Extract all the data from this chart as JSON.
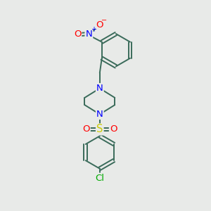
{
  "bg_color": "#e8eae8",
  "bond_color": "#3a6b5a",
  "N_color": "#0000ff",
  "O_color": "#ff0000",
  "S_color": "#cccc00",
  "Cl_color": "#00aa00",
  "bond_width": 1.4,
  "font_size_atom": 8.5,
  "fig_size": [
    3.0,
    3.0
  ],
  "dpi": 100,
  "xlim": [
    0,
    10
  ],
  "ylim": [
    0,
    10
  ]
}
